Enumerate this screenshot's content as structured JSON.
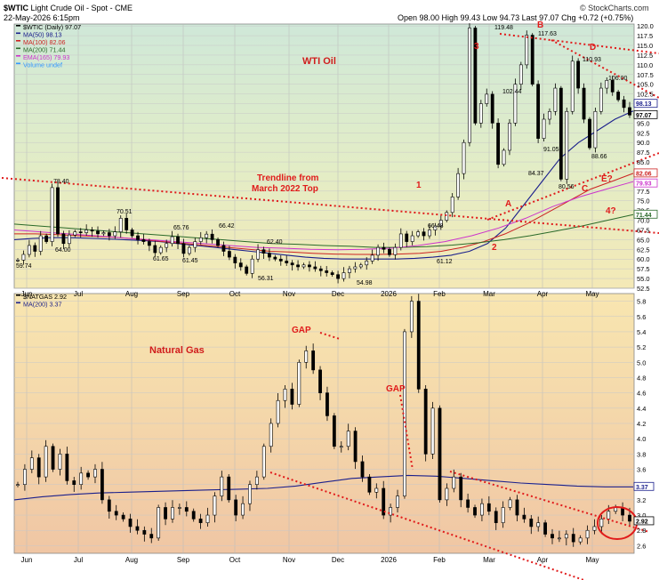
{
  "header": {
    "symbol": "$WTIC",
    "name": "Light Crude Oil - Spot",
    "exchange": "CME",
    "date": "22-May-2026 6:15pm",
    "quote": "Open 98.00  High 99.43  Low 94.73  Last 97.07  Chg +0.72 (+0.75%)",
    "credit": "© StockCharts.com"
  },
  "chart_data": [
    {
      "type": "line",
      "title": "WTI Oil",
      "legend": [
        {
          "label": "$WTIC (Daily) 97.07",
          "color": "#000000"
        },
        {
          "label": "MA(50) 98.13",
          "color": "#1a1f8c"
        },
        {
          "label": "MA(100) 82.06",
          "color": "#cc2222"
        },
        {
          "label": "MA(200) 71.44",
          "color": "#2a6a2a"
        },
        {
          "label": "EMA(165) 79.93",
          "color": "#cc33cc"
        },
        {
          "label": "Volume undef",
          "color": "#3399ff"
        }
      ],
      "x_labels": [
        "Jun",
        "Jul",
        "Aug",
        "Sep",
        "Oct",
        "Nov",
        "Dec",
        "2026",
        "Feb",
        "Mar",
        "Apr",
        "May"
      ],
      "y_ticks": [
        52.5,
        55.0,
        57.5,
        60.0,
        62.5,
        65.0,
        67.5,
        70.0,
        72.5,
        75.0,
        77.5,
        80.0,
        82.5,
        85.0,
        87.5,
        90.0,
        92.5,
        95.0,
        97.5,
        100.0,
        102.5,
        105.0,
        107.5,
        110.0,
        112.5,
        115.0,
        117.5,
        120.0
      ],
      "ylim": [
        52.5,
        120.5
      ],
      "series": [
        {
          "name": "$WTIC",
          "values": [
            59.74,
            61.2,
            63.5,
            62.0,
            66.0,
            64.5,
            78.4,
            66.5,
            64.0,
            66.2,
            67.0,
            66.8,
            67.5,
            67.2,
            66.5,
            66.8,
            66.0,
            67.0,
            70.51,
            67.5,
            66.0,
            65.0,
            64.5,
            63.5,
            61.65,
            63.0,
            64.0,
            65.76,
            64.0,
            61.45,
            63.0,
            64.5,
            65.5,
            66.42,
            65.0,
            63.5,
            62.0,
            60.5,
            59.0,
            58.0,
            56.31,
            60.0,
            62.4,
            61.5,
            60.5,
            60.0,
            59.5,
            59.0,
            58.5,
            58.0,
            58.5,
            58.0,
            57.5,
            57.0,
            56.5,
            56.0,
            54.98,
            56.5,
            57.5,
            58.0,
            58.5,
            59.5,
            61.0,
            63.0,
            62.5,
            61.12,
            63.0,
            66.48,
            64.5,
            66.0,
            67.0,
            66.0,
            67.5,
            68.5,
            70.0,
            72.0,
            76.0,
            82.0,
            90.0,
            119.48,
            95.0,
            100.0,
            102.44,
            95.0,
            84.37,
            88.0,
            95.0,
            105.0,
            110.0,
            117.63,
            105.0,
            91.05,
            96.0,
            98.0,
            104.0,
            80.56,
            98.0,
            110.93,
            104.0,
            96.0,
            88.66,
            98.0,
            104.0,
            106.0,
            103.0,
            101.0,
            99.0,
            97.07
          ]
        },
        {
          "name": "MA(50)",
          "values": [
            65.0,
            65.3,
            65.5,
            65.5,
            65.4,
            65.2,
            65.0,
            64.8,
            64.5,
            64.0,
            63.5,
            63.0,
            62.5,
            62.0,
            61.5,
            61.0,
            60.5,
            60.2,
            60.0,
            60.0,
            60.0,
            60.0,
            60.2,
            60.5,
            61.0,
            62.0,
            64.0,
            68.0,
            74.0,
            80.0,
            86.0,
            90.0,
            93.0,
            96.0,
            98.13
          ]
        },
        {
          "name": "MA(100)",
          "values": [
            66.5,
            66.5,
            66.3,
            66.0,
            65.8,
            65.5,
            65.0,
            64.5,
            64.0,
            63.5,
            63.0,
            62.5,
            62.0,
            61.8,
            61.5,
            61.3,
            61.2,
            61.2,
            61.3,
            61.5,
            62.0,
            63.0,
            64.5,
            66.5,
            69.0,
            72.0,
            75.0,
            78.0,
            80.0,
            82.06
          ]
        },
        {
          "name": "MA(200)",
          "values": [
            69.0,
            68.5,
            68.0,
            67.5,
            67.0,
            66.5,
            66.0,
            65.5,
            65.0,
            64.5,
            64.0,
            63.8,
            63.5,
            63.3,
            63.0,
            63.0,
            63.2,
            63.6,
            64.2,
            65.0,
            66.0,
            67.2,
            68.5,
            70.0,
            71.44
          ]
        },
        {
          "name": "EMA(165)",
          "values": [
            67.5,
            67.0,
            66.5,
            66.0,
            65.5,
            65.0,
            64.5,
            64.0,
            63.5,
            63.0,
            62.8,
            62.5,
            62.4,
            62.5,
            62.8,
            63.5,
            64.5,
            66.0,
            68.0,
            70.5,
            73.5,
            76.0,
            78.0,
            79.93
          ]
        }
      ],
      "key_prices": [
        "59.74",
        "64.00",
        "78.40",
        "70.51",
        "61.65",
        "65.76",
        "61.45",
        "66.42",
        "62.40",
        "56.31",
        "54.98",
        "66.48",
        "61.12",
        "119.48",
        "102.44",
        "84.37",
        "117.63",
        "91.05",
        "80.56",
        "110.93",
        "106.00",
        "88.66",
        "97.07",
        "98.13",
        "82.06",
        "79.93",
        "71.44"
      ],
      "annotations": {
        "trendline": "Trendline from March 2022 Top",
        "wave_labels": [
          "1",
          "2",
          "3",
          "A",
          "B",
          "C",
          "D",
          "E?",
          "4?"
        ]
      }
    },
    {
      "type": "line",
      "title": "Natural Gas",
      "legend": [
        {
          "label": "$NATGAS 2.92",
          "color": "#000000"
        },
        {
          "label": "MA(200) 3.37",
          "color": "#1a1f8c"
        }
      ],
      "x_labels": [
        "Jun",
        "Jul",
        "Aug",
        "Sep",
        "Oct",
        "Nov",
        "Dec",
        "2026",
        "Feb",
        "Mar",
        "Apr",
        "May"
      ],
      "y_ticks": [
        2.6,
        2.8,
        3.0,
        3.2,
        3.4,
        3.6,
        3.8,
        4.0,
        4.2,
        4.4,
        4.6,
        4.8,
        5.0,
        5.2,
        5.4,
        5.6,
        5.8
      ],
      "ylim": [
        2.5,
        5.9
      ],
      "series": [
        {
          "name": "$NATGAS",
          "values": [
            3.4,
            3.6,
            3.75,
            3.5,
            3.9,
            3.6,
            3.8,
            3.45,
            3.4,
            3.55,
            3.5,
            3.6,
            3.2,
            3.05,
            3.0,
            2.95,
            2.85,
            2.8,
            2.75,
            2.7,
            3.1,
            2.95,
            3.1,
            3.1,
            3.05,
            2.95,
            2.9,
            3.0,
            3.25,
            3.5,
            3.2,
            3.0,
            3.15,
            3.4,
            3.5,
            3.9,
            4.2,
            4.5,
            4.65,
            4.45,
            5.0,
            5.15,
            4.9,
            4.6,
            4.3,
            3.9,
            3.9,
            4.1,
            3.7,
            3.5,
            3.3,
            3.35,
            3.0,
            3.1,
            3.25,
            5.4,
            5.8,
            4.65,
            3.8,
            4.4,
            3.2,
            3.35,
            3.5,
            3.2,
            3.1,
            3.0,
            3.15,
            3.05,
            2.9,
            3.1,
            3.2,
            3.0,
            2.95,
            2.85,
            2.9,
            2.75,
            2.7,
            2.7,
            2.75,
            2.65,
            2.7,
            2.8,
            2.85,
            2.95,
            3.05,
            3.1,
            3.0,
            2.92
          ]
        },
        {
          "name": "MA(200)",
          "values": [
            3.2,
            3.24,
            3.27,
            3.29,
            3.3,
            3.31,
            3.32,
            3.33,
            3.34,
            3.35,
            3.38,
            3.43,
            3.48,
            3.5,
            3.52,
            3.51,
            3.48,
            3.45,
            3.42,
            3.4,
            3.38,
            3.37,
            3.37
          ]
        }
      ],
      "annotations": {
        "gap_labels": [
          "GAP",
          "GAP"
        ]
      }
    }
  ]
}
